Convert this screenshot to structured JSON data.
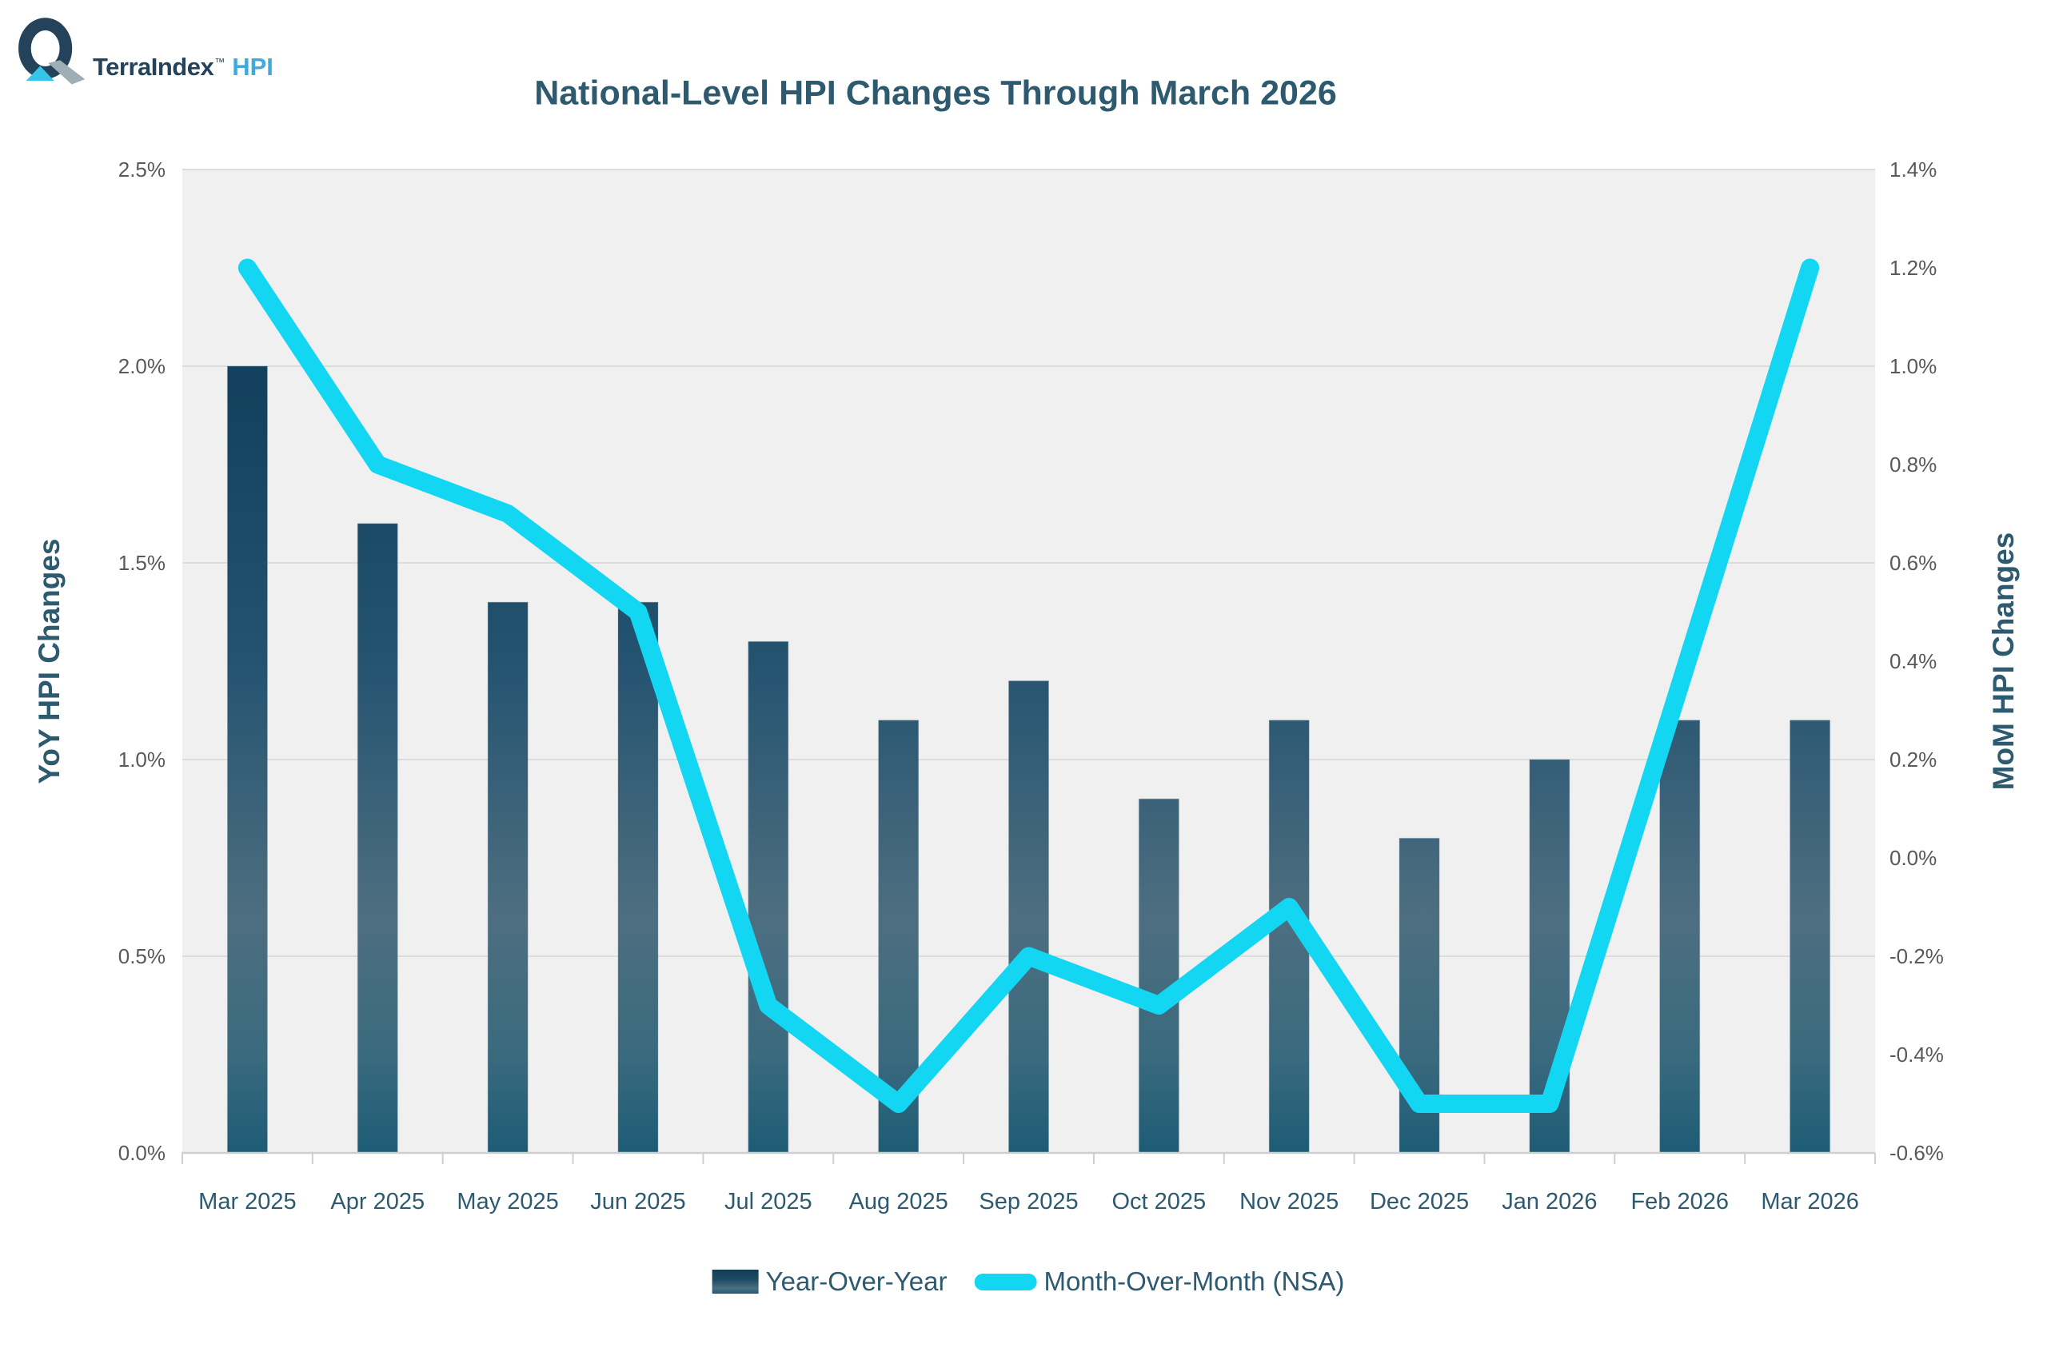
{
  "logo": {
    "brand": "TerraIndex",
    "tm": "™",
    "product": "HPI"
  },
  "title": "National-Level HPI Changes Through March 2026",
  "legend": {
    "bar_label": "Year-Over-Year",
    "line_label": "Month-Over-Month (NSA)"
  },
  "colors": {
    "accent_cyan": "#13d6f2",
    "bar_dark_navy": "#123d58",
    "bar_light_mid": "#4d6e80",
    "bar_bottom_teal": "#1d5c75",
    "text_slate": "#2e5a70",
    "tick_label_gray": "#595959",
    "plot_background": "#f0f0f1",
    "gridline": "#dcdcdc",
    "axis_line": "#cfcfcf",
    "logo_navy": "#24435a",
    "logo_gray": "#9fadb5",
    "logo_triangle_cyan": "#35c5ea",
    "logo_blue": "#41aadd"
  },
  "chart_data": {
    "type": "bar+line combo (dual axis)",
    "title": "National-Level HPI Changes Through March 2026",
    "categories": [
      "Mar 2025",
      "Apr 2025",
      "May 2025",
      "Jun 2025",
      "Jul 2025",
      "Aug 2025",
      "Sep 2025",
      "Oct 2025",
      "Nov 2025",
      "Dec 2025",
      "Jan 2026",
      "Feb 2026",
      "Mar 2026"
    ],
    "series": [
      {
        "name": "Year-Over-Year",
        "type": "bar",
        "axis": "left",
        "unit": "%",
        "values": [
          2.0,
          1.6,
          1.4,
          1.4,
          1.3,
          1.1,
          1.2,
          0.9,
          1.1,
          0.8,
          1.0,
          1.1,
          1.1
        ]
      },
      {
        "name": "Month-Over-Month (NSA)",
        "type": "line",
        "axis": "right",
        "unit": "%",
        "values": [
          1.2,
          0.8,
          0.7,
          0.5,
          -0.3,
          -0.5,
          -0.2,
          -0.3,
          -0.1,
          -0.5,
          -0.5,
          0.35,
          1.2
        ]
      }
    ],
    "left_axis": {
      "title": "YoY HPI Changes",
      "min": 0.0,
      "max": 2.5,
      "step": 0.5,
      "tick_format": "0.0%"
    },
    "right_axis": {
      "title": "MoM HPI Changes",
      "min": -0.6,
      "max": 1.4,
      "step": 0.2,
      "tick_format": "0.0%"
    },
    "grid": "horizontal gridlines at left-axis ticks only",
    "legend_position": "bottom center"
  }
}
